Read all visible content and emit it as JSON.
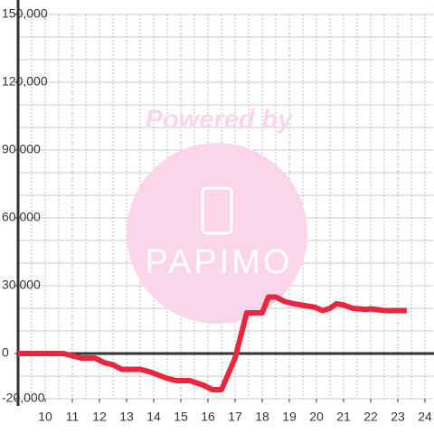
{
  "chart_data": {
    "type": "line",
    "x": [
      9.0,
      10.67,
      11.0,
      11.33,
      11.83,
      12.17,
      12.5,
      12.83,
      13.5,
      13.83,
      14.5,
      14.83,
      15.33,
      15.83,
      16.17,
      16.5,
      17.0,
      17.43,
      18.0,
      18.23,
      18.5,
      18.83,
      19.17,
      19.67,
      19.93,
      20.23,
      20.5,
      20.73,
      21.0,
      21.33,
      21.83,
      22.0,
      22.5,
      23.33
    ],
    "series": [
      {
        "color": "#e8263e",
        "values": [
          0,
          0,
          -1000,
          -2000,
          -2000,
          -4000,
          -5000,
          -7000,
          -7000,
          -8000,
          -11000,
          -12000,
          -12000,
          -14000,
          -16000,
          -16000,
          -2000,
          18000,
          18000,
          25000,
          25000,
          23000,
          22000,
          21000,
          20500,
          19000,
          20000,
          22000,
          21500,
          20000,
          19500,
          19800,
          19000,
          19000
        ]
      }
    ],
    "xlim": [
      9,
      24.3
    ],
    "xticks": [
      10,
      11,
      12,
      13,
      14,
      15,
      16,
      17,
      18,
      19,
      20,
      21,
      22,
      23,
      24
    ],
    "ylim": [
      -20000,
      150000
    ],
    "yticks": [
      {
        "value": -20000,
        "label": "-20,000"
      },
      0,
      {
        "value": 30000,
        "label": "30,000"
      },
      {
        "value": 60000,
        "label": "60,000"
      },
      {
        "value": 90000,
        "label": "90,000"
      },
      {
        "value": 120000,
        "label": "120,000"
      },
      {
        "value": 150000,
        "label": "150,000"
      }
    ],
    "grid": true,
    "ygrid_step": 10000,
    "xgrid_step": 0.5,
    "watermark": {
      "line1": "Powered by",
      "line2": "PAPIMO"
    }
  }
}
